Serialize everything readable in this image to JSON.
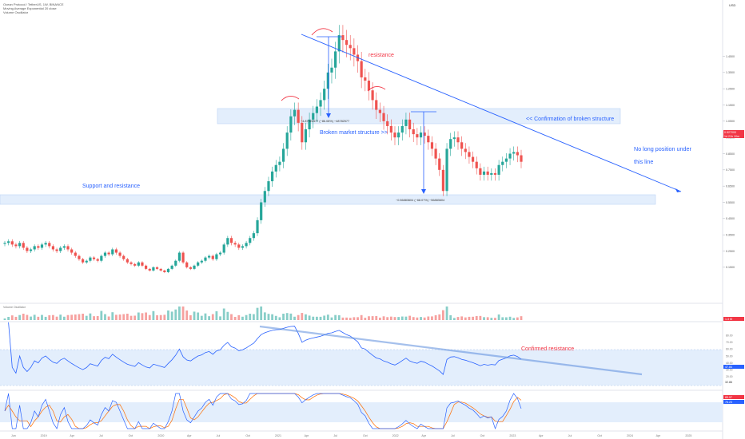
{
  "header": {
    "line1": "Ocean Protocol / TetherUS, 1W, BINANCE",
    "line2": "Moving Average Exponential 20 close",
    "line3": "Volume Oscillator"
  },
  "chart_data": {
    "type": "candlestick",
    "title": "",
    "currency": "USD",
    "price_scale_ticks": [
      "1.4500",
      "1.3500",
      "1.2500",
      "1.1500",
      "1.0500",
      "0.9500",
      "0.8500",
      "0.7500",
      "0.6500",
      "0.5500",
      "0.4500",
      "0.3500",
      "0.2500",
      "0.1500"
    ],
    "current_price_label": "0.527000",
    "current_price_label_2": "1d 21h 10m",
    "time_axis_labels": [
      "Jun",
      "2019",
      "Apr",
      "Jul",
      "Oct",
      "2020",
      "Apr",
      "Jul",
      "Oct",
      "2021",
      "Apr",
      "Jul",
      "Oct",
      "2022",
      "Apr",
      "Jul",
      "Oct",
      "2023",
      "Apr",
      "Jul",
      "Oct",
      "2024",
      "Apr",
      "2025"
    ],
    "closes": [
      0.3,
      0.31,
      0.29,
      0.28,
      0.3,
      0.27,
      0.25,
      0.26,
      0.28,
      0.27,
      0.29,
      0.3,
      0.28,
      0.26,
      0.25,
      0.27,
      0.28,
      0.26,
      0.24,
      0.22,
      0.2,
      0.18,
      0.19,
      0.21,
      0.2,
      0.19,
      0.22,
      0.24,
      0.23,
      0.26,
      0.24,
      0.22,
      0.2,
      0.18,
      0.17,
      0.16,
      0.18,
      0.16,
      0.14,
      0.13,
      0.15,
      0.14,
      0.13,
      0.12,
      0.14,
      0.16,
      0.19,
      0.24,
      0.18,
      0.15,
      0.14,
      0.16,
      0.18,
      0.19,
      0.21,
      0.22,
      0.2,
      0.23,
      0.24,
      0.29,
      0.33,
      0.3,
      0.29,
      0.27,
      0.28,
      0.3,
      0.33,
      0.36,
      0.44,
      0.55,
      0.62,
      0.68,
      0.74,
      0.78,
      0.8,
      0.88,
      0.98,
      1.08,
      1.12,
      1.04,
      0.92,
      1.0,
      1.06,
      1.1,
      1.14,
      1.18,
      1.25,
      1.35,
      1.38,
      1.48,
      1.58,
      1.55,
      1.52,
      1.5,
      1.46,
      1.42,
      1.32,
      1.3,
      1.24,
      1.18,
      1.12,
      1.1,
      1.05,
      1.02,
      0.98,
      0.95,
      0.98,
      1.02,
      1.06,
      1.0,
      0.97,
      0.95,
      0.98,
      0.96,
      0.92,
      0.88,
      0.82,
      0.75,
      0.62,
      0.88,
      0.94,
      0.95,
      0.92,
      0.88,
      0.86,
      0.83,
      0.8,
      0.76,
      0.72,
      0.74,
      0.72,
      0.73,
      0.72,
      0.78,
      0.8,
      0.82,
      0.85,
      0.86,
      0.84,
      0.8
    ],
    "annotations": {
      "resistance": "resistance",
      "broken_structure": "Broken market structure >>",
      "confirmation": "<< Confirmation of broken structure",
      "no_long": "No long position under",
      "this_line": "this line",
      "support_resistance": "Support and resistance",
      "measure_top": "−4.87922577 (−86.08%) −48782577",
      "measure_bottom": "−0.56883604 (−68.07%) −56883604",
      "confirmed_resistance": "Confirmed resistance"
    },
    "rsi": {
      "scale_ticks": [
        "80.00",
        "70.00",
        "60.00",
        "50.00",
        "40.00",
        "30.00",
        "20.00"
      ],
      "value_label": "47.84",
      "base_label": "32.86"
    },
    "stoch": {
      "value_label_k": "89.97",
      "value_label_d": "76.23"
    },
    "volume_label": "1.3 M",
    "colors": {
      "up": "#26a69a",
      "down": "#ef5350",
      "trendline": "#2962ff",
      "zone": "#e3eefc",
      "annotation_red": "#f23645",
      "annotation_blue": "#2962ff",
      "rsi": "#2962ff",
      "stoch_k": "#2962ff",
      "stoch_d": "#ff6d00"
    }
  }
}
